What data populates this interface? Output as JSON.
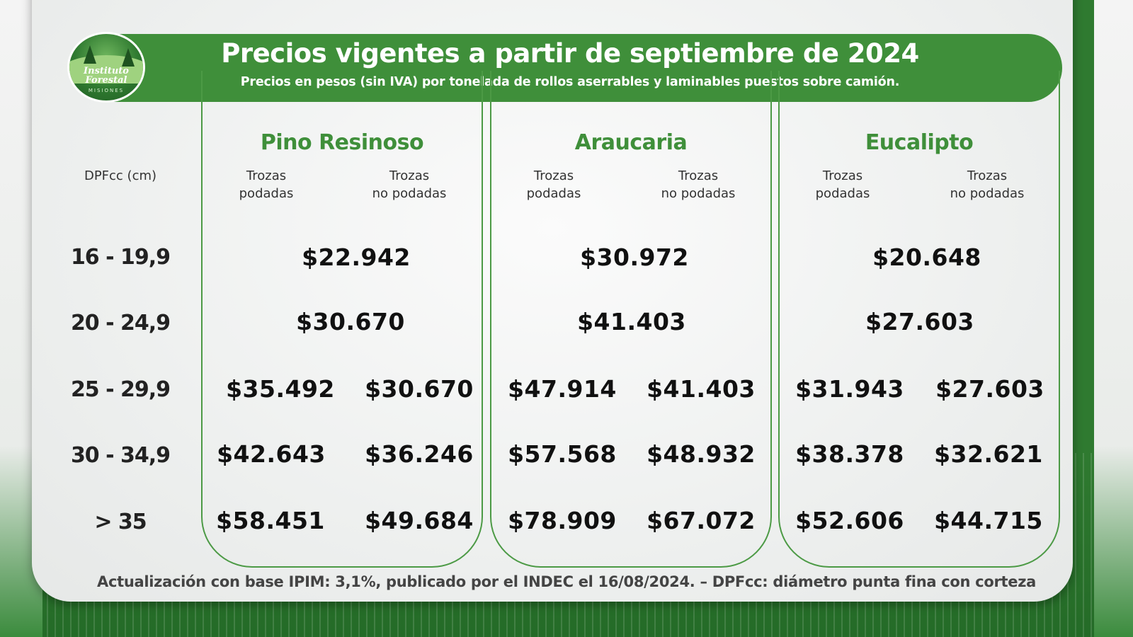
{
  "header": {
    "title": "Precios vigentes a partir de septiembre de 2024",
    "subtitle": "Precios en pesos (sin IVA) por tonelada de rollos aserrables y laminables puestos sobre camión."
  },
  "logo": {
    "name_line1": "Instituto Forestal",
    "place": "MISIONES",
    "icon": "forest-logo-icon"
  },
  "table": {
    "dpf_label": "DPFcc (cm)",
    "rows": [
      "16 - 19,9",
      "20 - 24,9",
      "25 - 29,9",
      "30 - 34,9",
      "> 35"
    ],
    "subheads": [
      "Trozas\npodadas",
      "Trozas\nno podadas"
    ],
    "species": [
      {
        "name": "Pino Resinoso",
        "single": [
          "$22.942",
          "$30.670"
        ],
        "podadas": [
          "$35.492",
          "$42.643",
          "$58.451"
        ],
        "no_podadas": [
          "$30.670",
          "$36.246",
          "$49.684"
        ]
      },
      {
        "name": "Araucaria",
        "single": [
          "$30.972",
          "$41.403"
        ],
        "podadas": [
          "$47.914",
          "$57.568",
          "$78.909"
        ],
        "no_podadas": [
          "$41.403",
          "$48.932",
          "$67.072"
        ]
      },
      {
        "name": "Eucalipto",
        "single": [
          "$20.648",
          "$27.603"
        ],
        "podadas": [
          "$31.943",
          "$38.378",
          "$52.606"
        ],
        "no_podadas": [
          "$27.603",
          "$32.621",
          "$44.715"
        ]
      }
    ]
  },
  "footer": "Actualización con base IPIM: 3,1%, publicado por el INDEC el 16/08/2024.  –  DPFcc: diámetro punta fina con corteza",
  "colors": {
    "brand_green": "#3f8f3a",
    "text_dark": "#111111"
  }
}
